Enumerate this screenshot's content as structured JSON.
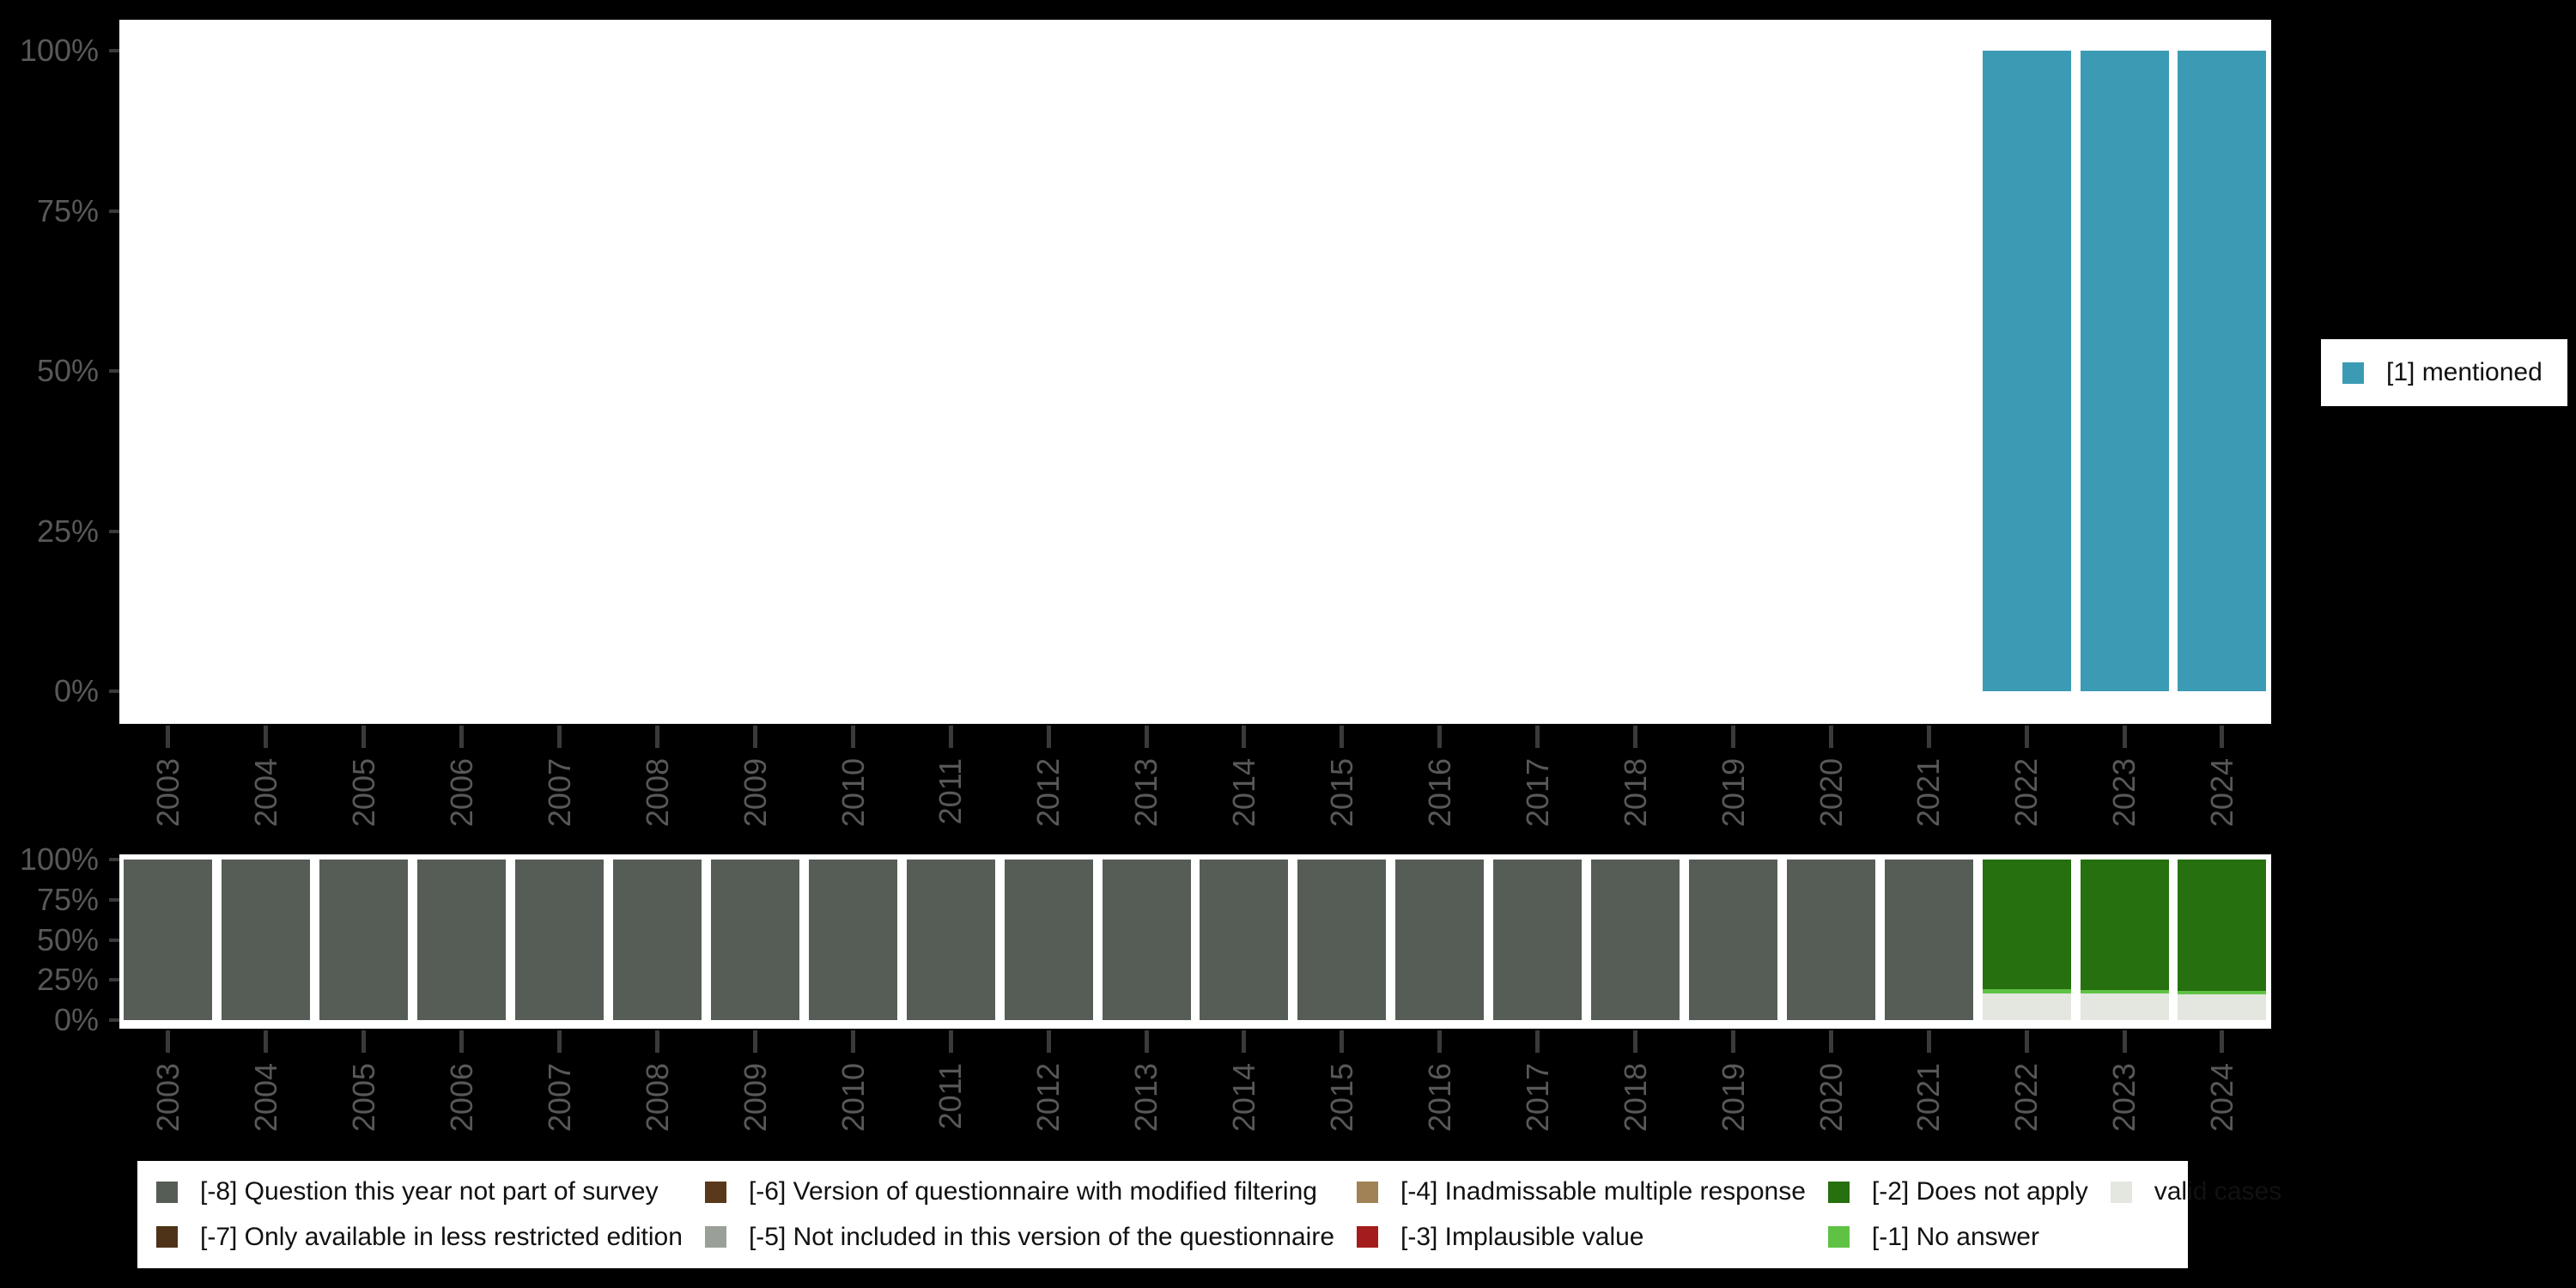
{
  "figure": {
    "background": "#000000",
    "panel_background": "#ffffff",
    "axis_text_color": "#585858",
    "tick_color": "#3a3a3a",
    "legend_text_color": "#111111"
  },
  "top_legend": {
    "label": "[1] mentioned",
    "color": "#3c9bb4"
  },
  "bottom_legend": {
    "entries": [
      {
        "label": "[-8] Question this year not part of survey",
        "color": "#565d56"
      },
      {
        "label": "[-7] Only available in less restricted edition",
        "color": "#4e3319"
      },
      {
        "label": "[-6] Version of questionnaire with modified filtering",
        "color": "#59391a"
      },
      {
        "label": "[-5] Not included in this version of the questionnaire",
        "color": "#9aa098"
      },
      {
        "label": "[-4] Inadmissable multiple response",
        "color": "#a18257"
      },
      {
        "label": "[-3] Implausible value",
        "color": "#a51c1c"
      },
      {
        "label": "[-2] Does not apply",
        "color": "#26700f"
      },
      {
        "label": "[-1] No answer",
        "color": "#5fc245"
      },
      {
        "label": "valid cases",
        "color": "#e3e7e0"
      }
    ]
  },
  "chart_data": [
    {
      "type": "bar",
      "stacked": true,
      "title": "",
      "xlabel": "",
      "ylabel": "",
      "ylim": [
        0,
        100
      ],
      "grid": false,
      "legend_position": "right",
      "y_ticks": [
        0,
        25,
        50,
        75,
        100
      ],
      "y_tick_labels": [
        "0%",
        "25%",
        "50%",
        "75%",
        "100%"
      ],
      "categories": [
        "2003",
        "2004",
        "2005",
        "2006",
        "2007",
        "2008",
        "2009",
        "2010",
        "2011",
        "2012",
        "2013",
        "2014",
        "2015",
        "2016",
        "2017",
        "2018",
        "2019",
        "2020",
        "2021",
        "2022",
        "2023",
        "2024"
      ],
      "series": [
        {
          "name": "[1] mentioned",
          "color": "#3c9bb4",
          "values": [
            0,
            0,
            0,
            0,
            0,
            0,
            0,
            0,
            0,
            0,
            0,
            0,
            0,
            0,
            0,
            0,
            0,
            0,
            0,
            100,
            100,
            100
          ]
        }
      ]
    },
    {
      "type": "bar",
      "stacked": true,
      "title": "",
      "xlabel": "",
      "ylabel": "",
      "ylim": [
        0,
        100
      ],
      "grid": false,
      "legend_position": "bottom",
      "y_ticks": [
        0,
        25,
        50,
        75,
        100
      ],
      "y_tick_labels": [
        "0%",
        "25%",
        "50%",
        "75%",
        "100%"
      ],
      "categories": [
        "2003",
        "2004",
        "2005",
        "2006",
        "2007",
        "2008",
        "2009",
        "2010",
        "2011",
        "2012",
        "2013",
        "2014",
        "2015",
        "2016",
        "2017",
        "2018",
        "2019",
        "2020",
        "2021",
        "2022",
        "2023",
        "2024"
      ],
      "series": [
        {
          "name": "valid cases",
          "color": "#e3e7e0",
          "values": [
            0,
            0,
            0,
            0,
            0,
            0,
            0,
            0,
            0,
            0,
            0,
            0,
            0,
            0,
            0,
            0,
            0,
            0,
            0,
            16.8,
            16.6,
            16.2
          ]
        },
        {
          "name": "[-1] No answer",
          "color": "#5fc245",
          "values": [
            0,
            0,
            0,
            0,
            0,
            0,
            0,
            0,
            0,
            0,
            0,
            0,
            0,
            0,
            0,
            0,
            0,
            0,
            0,
            2.7,
            2.2,
            2.2
          ]
        },
        {
          "name": "[-2] Does not apply",
          "color": "#26700f",
          "values": [
            0,
            0,
            0,
            0,
            0,
            0,
            0,
            0,
            0,
            0,
            0,
            0,
            0,
            0,
            0,
            0,
            0,
            0,
            0,
            80.5,
            81.2,
            81.6
          ]
        },
        {
          "name": "[-8] Question this year not part of survey",
          "color": "#565d56",
          "values": [
            100,
            100,
            100,
            100,
            100,
            100,
            100,
            100,
            100,
            100,
            100,
            100,
            100,
            100,
            100,
            100,
            100,
            100,
            100,
            0,
            0,
            0
          ]
        }
      ]
    }
  ]
}
